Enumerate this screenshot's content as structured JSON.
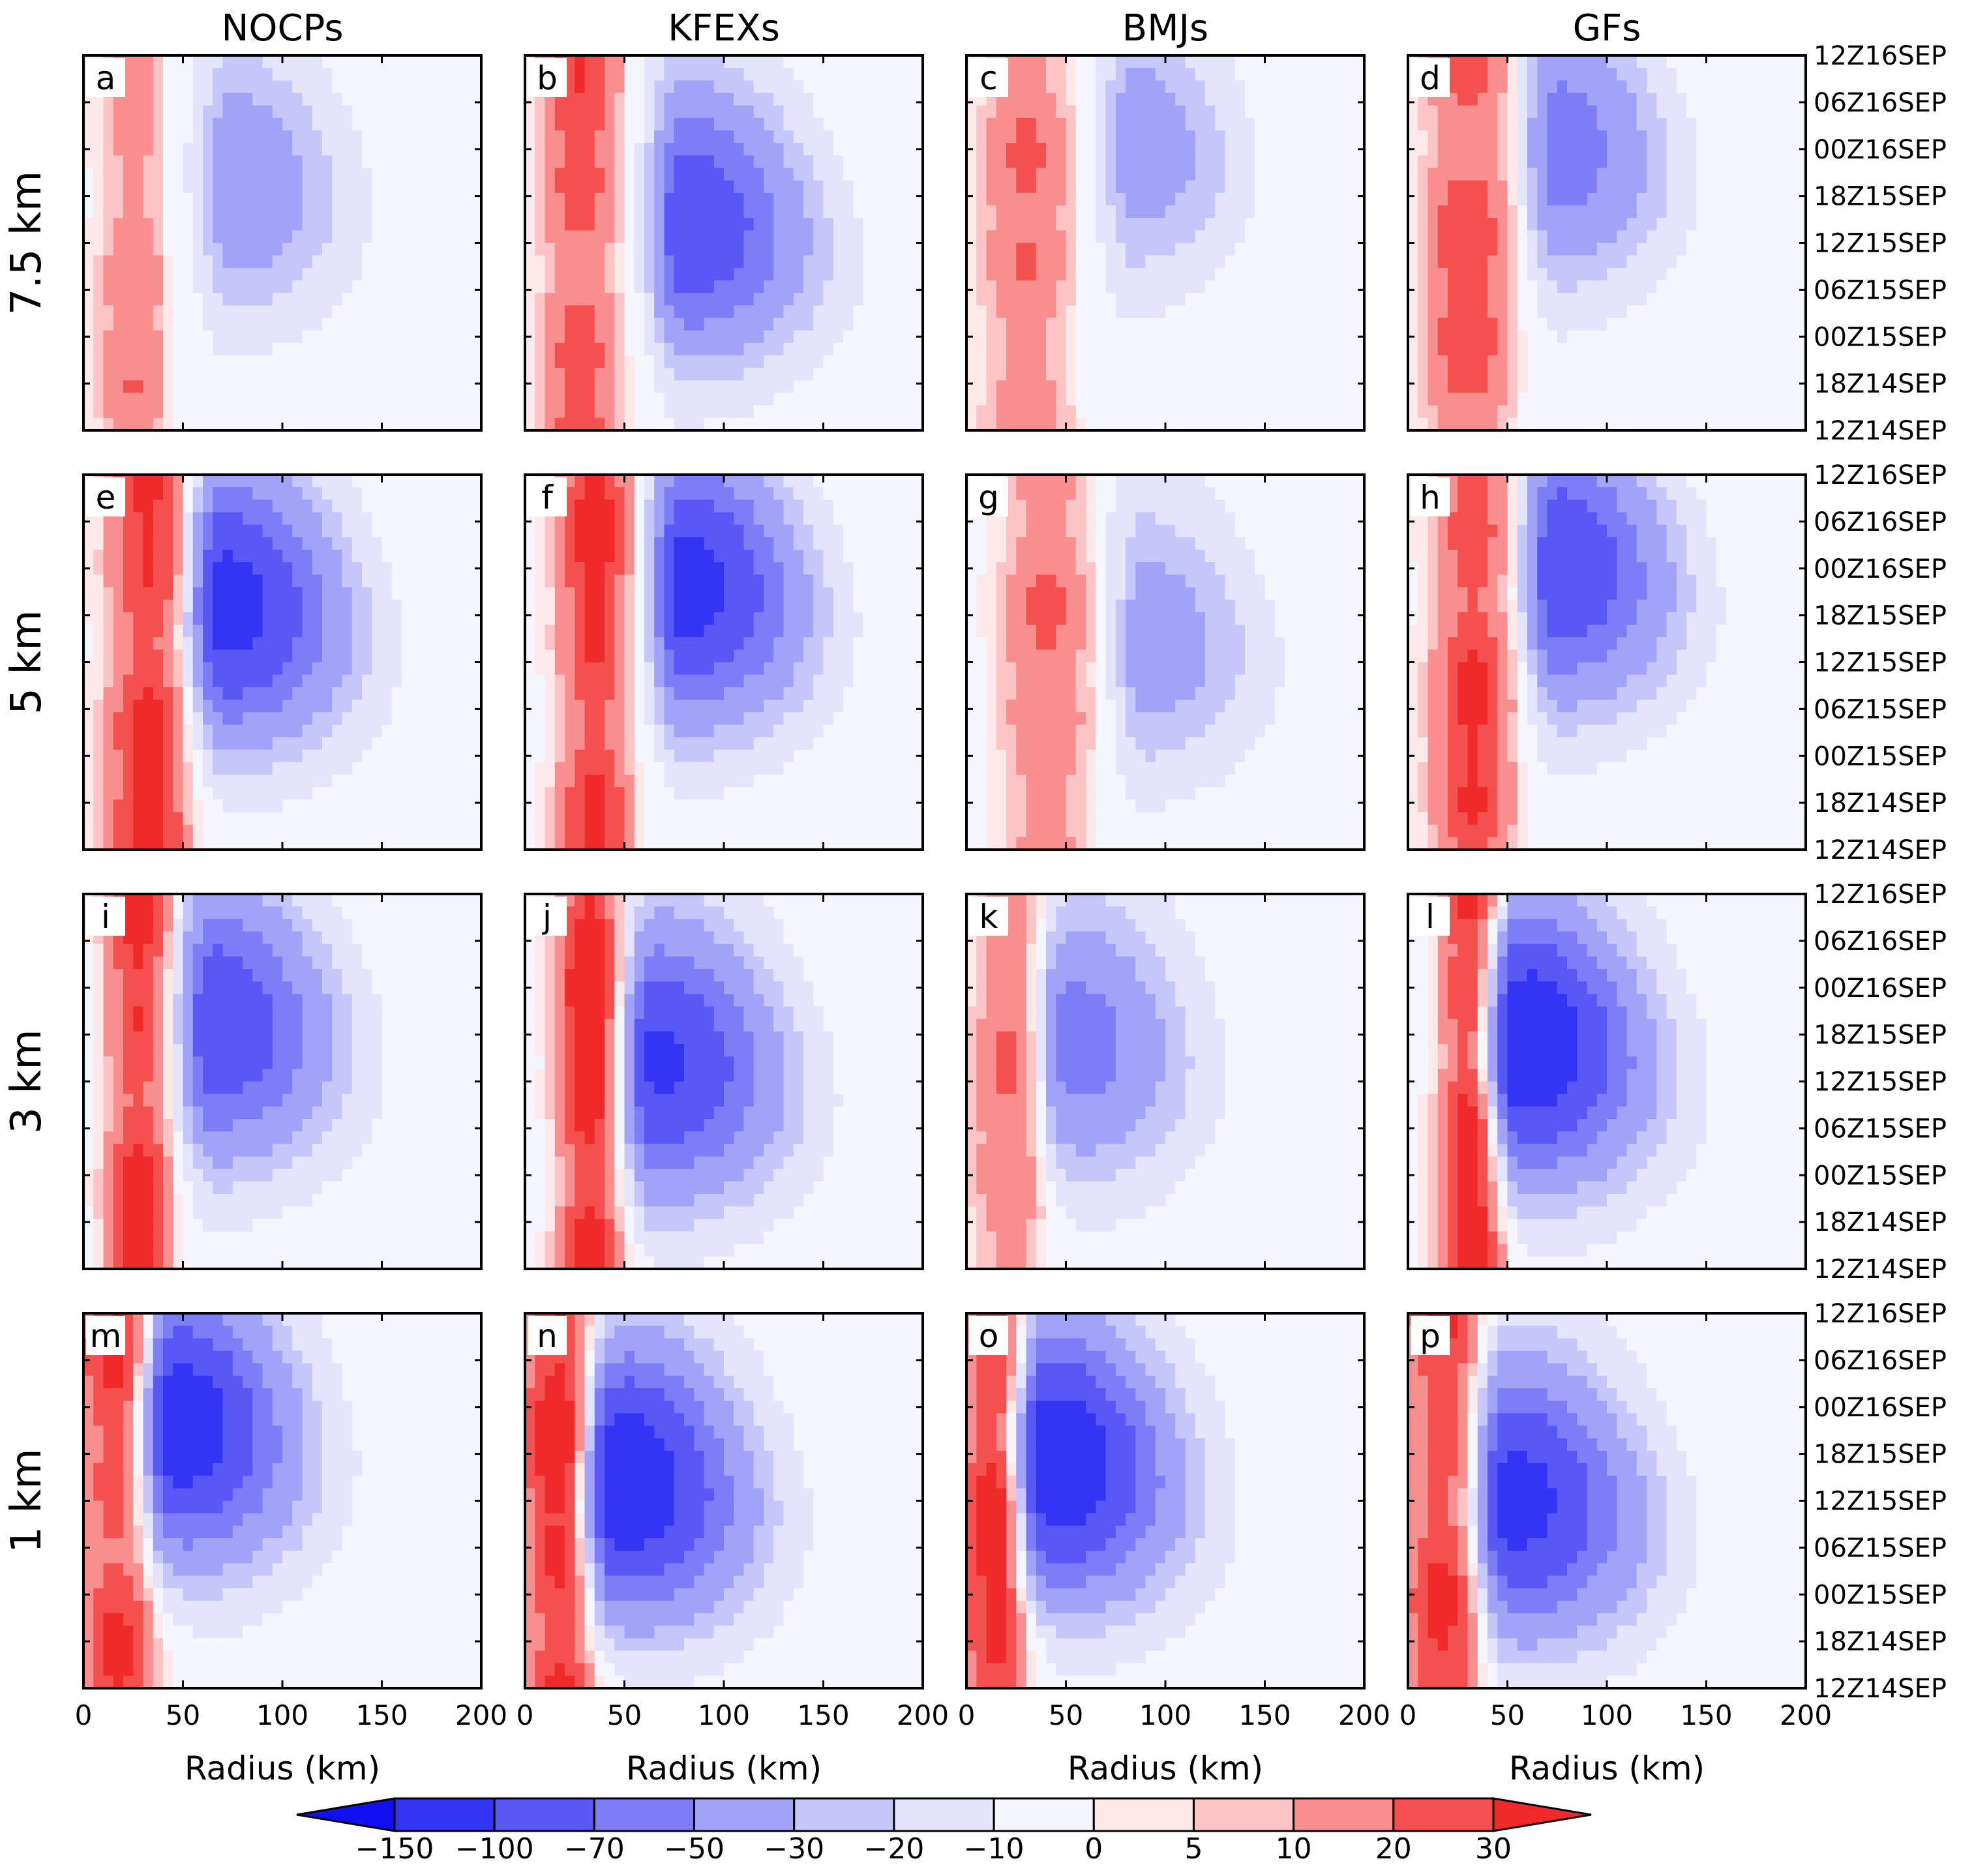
{
  "chart_data": {
    "type": "heatmap",
    "title": "",
    "columns": [
      "NOCPs",
      "KFEXs",
      "BMJs",
      "GFs"
    ],
    "rows": [
      "7.5 km",
      "5 km",
      "3 km",
      "1 km"
    ],
    "panel_letters": [
      "a",
      "b",
      "c",
      "d",
      "e",
      "f",
      "g",
      "h",
      "i",
      "j",
      "k",
      "l",
      "m",
      "n",
      "o",
      "p"
    ],
    "xlabel": "Radius (km)",
    "xticks": [
      "0",
      "50",
      "100",
      "150",
      "200"
    ],
    "xlim": [
      0,
      200
    ],
    "time_labels": [
      "12Z16SEP",
      "06Z16SEP",
      "00Z16SEP",
      "18Z15SEP",
      "12Z15SEP",
      "06Z15SEP",
      "00Z15SEP",
      "18Z14SEP",
      "12Z14SEP"
    ],
    "colorbar": {
      "levels": [
        "−150",
        "−100",
        "−70",
        "−50",
        "−30",
        "−20",
        "−10",
        "0",
        "5",
        "10",
        "20",
        "30"
      ],
      "colors": [
        "#1010f0",
        "#3434f4",
        "#5858f6",
        "#7d7df7",
        "#a2a2f9",
        "#c6c6fb",
        "#e4e4fd",
        "#f5f5fe",
        "#fde9e9",
        "#fcc4c4",
        "#f98e8e",
        "#f55050",
        "#f02a2a"
      ]
    },
    "panels": [
      {
        "id": "a",
        "posMax": 20,
        "posR": [
          10,
          40
        ],
        "negMin": -40,
        "negR": [
          40,
          175
        ],
        "negCenter": [
          75,
          0.65
        ]
      },
      {
        "id": "b",
        "posMax": 28,
        "posR": [
          10,
          45
        ],
        "negMin": -90,
        "negR": [
          50,
          210
        ],
        "negCenter": [
          80,
          0.55
        ]
      },
      {
        "id": "c",
        "posMax": 22,
        "posR": [
          10,
          50
        ],
        "negMin": -35,
        "negR": [
          55,
          160
        ],
        "negCenter": [
          85,
          0.75
        ]
      },
      {
        "id": "d",
        "posMax": 28,
        "posR": [
          10,
          50
        ],
        "negMin": -55,
        "negR": [
          55,
          160
        ],
        "negCenter": [
          75,
          0.75
        ]
      },
      {
        "id": "e",
        "posMax": 35,
        "posR": [
          15,
          50
        ],
        "negMin": -110,
        "negR": [
          50,
          200
        ],
        "negCenter": [
          70,
          0.65
        ]
      },
      {
        "id": "f",
        "posMax": 35,
        "posR": [
          20,
          50
        ],
        "negMin": -110,
        "negR": [
          55,
          200
        ],
        "negCenter": [
          80,
          0.7
        ]
      },
      {
        "id": "g",
        "posMax": 22,
        "posR": [
          20,
          60
        ],
        "negMin": -35,
        "negR": [
          65,
          180
        ],
        "negCenter": [
          90,
          0.55
        ]
      },
      {
        "id": "h",
        "posMax": 32,
        "posR": [
          15,
          50
        ],
        "negMin": -90,
        "negR": [
          55,
          190
        ],
        "negCenter": [
          75,
          0.75
        ]
      },
      {
        "id": "i",
        "posMax": 35,
        "posR": [
          15,
          40
        ],
        "negMin": -90,
        "negR": [
          45,
          190
        ],
        "negCenter": [
          65,
          0.65
        ]
      },
      {
        "id": "j",
        "posMax": 40,
        "posR": [
          20,
          45
        ],
        "negMin": -100,
        "negR": [
          50,
          200
        ],
        "negCenter": [
          65,
          0.55
        ]
      },
      {
        "id": "k",
        "posMax": 22,
        "posR": [
          5,
          40
        ],
        "negMin": -55,
        "negR": [
          40,
          180
        ],
        "negCenter": [
          50,
          0.6
        ]
      },
      {
        "id": "l",
        "posMax": 40,
        "posR": [
          20,
          45
        ],
        "negMin": -130,
        "negR": [
          50,
          200
        ],
        "negCenter": [
          55,
          0.6
        ]
      },
      {
        "id": "m",
        "posMax": 32,
        "posR": [
          0,
          35
        ],
        "negMin": -120,
        "negR": [
          35,
          200
        ],
        "negCenter": [
          45,
          0.7
        ]
      },
      {
        "id": "n",
        "posMax": 38,
        "posR": [
          0,
          35
        ],
        "negMin": -130,
        "negR": [
          35,
          200
        ],
        "negCenter": [
          45,
          0.55
        ]
      },
      {
        "id": "o",
        "posMax": 38,
        "posR": [
          0,
          30
        ],
        "negMin": -130,
        "negR": [
          30,
          200
        ],
        "negCenter": [
          40,
          0.6
        ]
      },
      {
        "id": "p",
        "posMax": 32,
        "posR": [
          0,
          35
        ],
        "negMin": -110,
        "negR": [
          35,
          200
        ],
        "negCenter": [
          50,
          0.5
        ]
      }
    ]
  }
}
